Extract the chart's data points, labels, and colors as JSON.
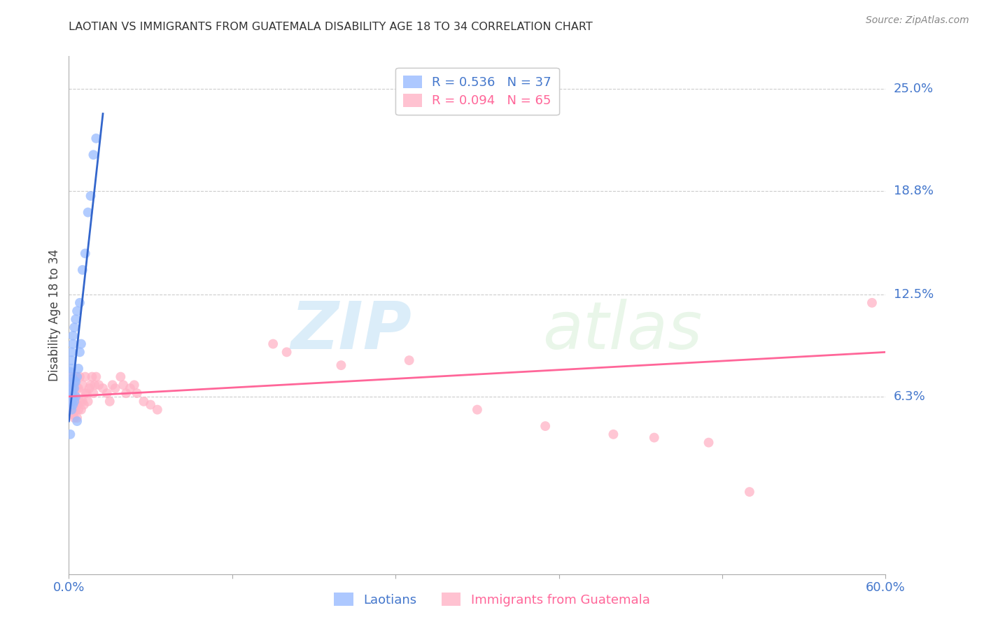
{
  "title": "LAOTIAN VS IMMIGRANTS FROM GUATEMALA DISABILITY AGE 18 TO 34 CORRELATION CHART",
  "source": "Source: ZipAtlas.com",
  "ylabel": "Disability Age 18 to 34",
  "ytick_labels": [
    "6.3%",
    "12.5%",
    "18.8%",
    "25.0%"
  ],
  "ytick_values": [
    0.063,
    0.125,
    0.188,
    0.25
  ],
  "xmin": 0.0,
  "xmax": 0.6,
  "ymin": -0.045,
  "ymax": 0.27,
  "blue_color": "#99BBFF",
  "pink_color": "#FFB3C6",
  "blue_line_color": "#3366CC",
  "pink_line_color": "#FF6699",
  "legend_blue_label": "R = 0.536   N = 37",
  "legend_pink_label": "R = 0.094   N = 65",
  "laotian_label": "Laotians",
  "guatemala_label": "Immigrants from Guatemala",
  "watermark_zip": "ZIP",
  "watermark_atlas": "atlas",
  "blue_scatter_x": [
    0.001,
    0.001,
    0.001,
    0.001,
    0.002,
    0.002,
    0.002,
    0.002,
    0.002,
    0.002,
    0.003,
    0.003,
    0.003,
    0.003,
    0.003,
    0.003,
    0.004,
    0.004,
    0.004,
    0.004,
    0.005,
    0.005,
    0.005,
    0.006,
    0.006,
    0.007,
    0.008,
    0.008,
    0.009,
    0.01,
    0.012,
    0.014,
    0.016,
    0.018,
    0.02,
    0.006,
    0.001
  ],
  "blue_scatter_y": [
    0.063,
    0.068,
    0.072,
    0.078,
    0.055,
    0.06,
    0.065,
    0.08,
    0.085,
    0.09,
    0.058,
    0.063,
    0.068,
    0.074,
    0.095,
    0.1,
    0.06,
    0.068,
    0.072,
    0.105,
    0.063,
    0.072,
    0.11,
    0.075,
    0.115,
    0.08,
    0.09,
    0.12,
    0.095,
    0.14,
    0.15,
    0.175,
    0.185,
    0.21,
    0.22,
    0.048,
    0.04
  ],
  "pink_scatter_x": [
    0.001,
    0.001,
    0.001,
    0.002,
    0.002,
    0.002,
    0.002,
    0.003,
    0.003,
    0.003,
    0.003,
    0.004,
    0.004,
    0.004,
    0.004,
    0.005,
    0.005,
    0.005,
    0.006,
    0.006,
    0.006,
    0.007,
    0.007,
    0.008,
    0.008,
    0.009,
    0.01,
    0.01,
    0.011,
    0.012,
    0.012,
    0.013,
    0.014,
    0.015,
    0.016,
    0.017,
    0.018,
    0.019,
    0.02,
    0.022,
    0.025,
    0.028,
    0.03,
    0.032,
    0.034,
    0.038,
    0.04,
    0.042,
    0.045,
    0.048,
    0.05,
    0.055,
    0.06,
    0.065,
    0.15,
    0.16,
    0.2,
    0.25,
    0.3,
    0.35,
    0.4,
    0.43,
    0.47,
    0.5,
    0.59
  ],
  "pink_scatter_y": [
    0.063,
    0.068,
    0.072,
    0.055,
    0.06,
    0.068,
    0.075,
    0.052,
    0.058,
    0.063,
    0.072,
    0.05,
    0.055,
    0.062,
    0.07,
    0.055,
    0.063,
    0.075,
    0.05,
    0.058,
    0.068,
    0.055,
    0.068,
    0.06,
    0.075,
    0.055,
    0.06,
    0.07,
    0.058,
    0.065,
    0.075,
    0.065,
    0.06,
    0.068,
    0.07,
    0.075,
    0.065,
    0.07,
    0.075,
    0.07,
    0.068,
    0.065,
    0.06,
    0.07,
    0.068,
    0.075,
    0.07,
    0.065,
    0.068,
    0.07,
    0.065,
    0.06,
    0.058,
    0.055,
    0.095,
    0.09,
    0.082,
    0.085,
    0.055,
    0.045,
    0.04,
    0.038,
    0.035,
    0.005,
    0.12
  ],
  "blue_trend_x": [
    0.0,
    0.025
  ],
  "blue_trend_y_start": 0.048,
  "blue_trend_y_end": 0.235,
  "pink_trend_x": [
    0.0,
    0.6
  ],
  "pink_trend_y_start": 0.063,
  "pink_trend_y_end": 0.09
}
